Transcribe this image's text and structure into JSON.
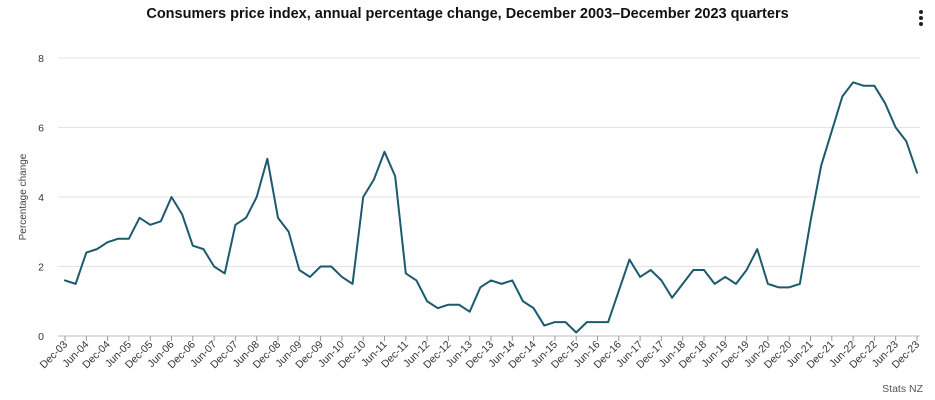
{
  "header": {
    "title": "Consumers price index, annual percentage change, December 2003–December 2023 quarters",
    "menu_icon": "more-vertical-icon"
  },
  "credit": "Stats NZ",
  "chart_data": {
    "type": "line",
    "title": "Consumers price index, annual percentage change, December 2003–December 2023 quarters",
    "ylabel": "Percentage change",
    "xlabel": "",
    "ylim": [
      0,
      8
    ],
    "yticks": [
      0,
      2,
      4,
      6,
      8
    ],
    "grid": true,
    "line_color": "#1c5a6e",
    "categories": [
      "Dec-03",
      "Mar-04",
      "Jun-04",
      "Sep-04",
      "Dec-04",
      "Mar-05",
      "Jun-05",
      "Sep-05",
      "Dec-05",
      "Mar-06",
      "Jun-06",
      "Sep-06",
      "Dec-06",
      "Mar-07",
      "Jun-07",
      "Sep-07",
      "Dec-07",
      "Mar-08",
      "Jun-08",
      "Sep-08",
      "Dec-08",
      "Mar-09",
      "Jun-09",
      "Sep-09",
      "Dec-09",
      "Mar-10",
      "Jun-10",
      "Sep-10",
      "Dec-10",
      "Mar-11",
      "Jun-11",
      "Sep-11",
      "Dec-11",
      "Mar-12",
      "Jun-12",
      "Sep-12",
      "Dec-12",
      "Mar-13",
      "Jun-13",
      "Sep-13",
      "Dec-13",
      "Mar-14",
      "Jun-14",
      "Sep-14",
      "Dec-14",
      "Mar-15",
      "Jun-15",
      "Sep-15",
      "Dec-15",
      "Mar-16",
      "Jun-16",
      "Sep-16",
      "Dec-16",
      "Mar-17",
      "Jun-17",
      "Sep-17",
      "Dec-17",
      "Mar-18",
      "Jun-18",
      "Sep-18",
      "Dec-18",
      "Mar-19",
      "Jun-19",
      "Sep-19",
      "Dec-19",
      "Mar-20",
      "Jun-20",
      "Sep-20",
      "Dec-20",
      "Mar-21",
      "Jun-21",
      "Sep-21",
      "Dec-21",
      "Mar-22",
      "Jun-22",
      "Sep-22",
      "Dec-22",
      "Mar-23",
      "Jun-23",
      "Sep-23",
      "Dec-23"
    ],
    "tick_labels": [
      "Dec-03",
      "Jun-04",
      "Dec-04",
      "Jun-05",
      "Dec-05",
      "Jun-06",
      "Dec-06",
      "Jun-07",
      "Dec-07",
      "Jun-08",
      "Dec-08",
      "Jun-09",
      "Dec-09",
      "Jun-10",
      "Dec-10",
      "Jun-11",
      "Dec-11",
      "Jun-12",
      "Dec-12",
      "Jun-13",
      "Dec-13",
      "Jun-14",
      "Dec-14",
      "Jun-15",
      "Dec-15",
      "Jun-16",
      "Dec-16",
      "Jun-17",
      "Dec-17",
      "Jun-18",
      "Dec-18",
      "Jun-19",
      "Dec-19",
      "Jun-20",
      "Dec-20",
      "Jun-21",
      "Dec-21",
      "Jun-22",
      "Dec-22",
      "Jun-23",
      "Dec-23"
    ],
    "series": [
      {
        "values": [
          1.6,
          1.5,
          2.4,
          2.5,
          2.7,
          2.8,
          2.8,
          3.4,
          3.2,
          3.3,
          4.0,
          3.5,
          2.6,
          2.5,
          2.0,
          1.8,
          3.2,
          3.4,
          4.0,
          5.1,
          3.4,
          3.0,
          1.9,
          1.7,
          2.0,
          2.0,
          1.7,
          1.5,
          4.0,
          4.5,
          5.3,
          4.6,
          1.8,
          1.6,
          1.0,
          0.8,
          0.9,
          0.9,
          0.7,
          1.4,
          1.6,
          1.5,
          1.6,
          1.0,
          0.8,
          0.3,
          0.4,
          0.4,
          0.1,
          0.4,
          0.4,
          0.4,
          1.3,
          2.2,
          1.7,
          1.9,
          1.6,
          1.1,
          1.5,
          1.9,
          1.9,
          1.5,
          1.7,
          1.5,
          1.9,
          2.5,
          1.5,
          1.4,
          1.4,
          1.5,
          3.3,
          4.9,
          5.9,
          6.9,
          7.3,
          7.2,
          7.2,
          6.7,
          6.0,
          5.6,
          4.7
        ]
      }
    ]
  }
}
